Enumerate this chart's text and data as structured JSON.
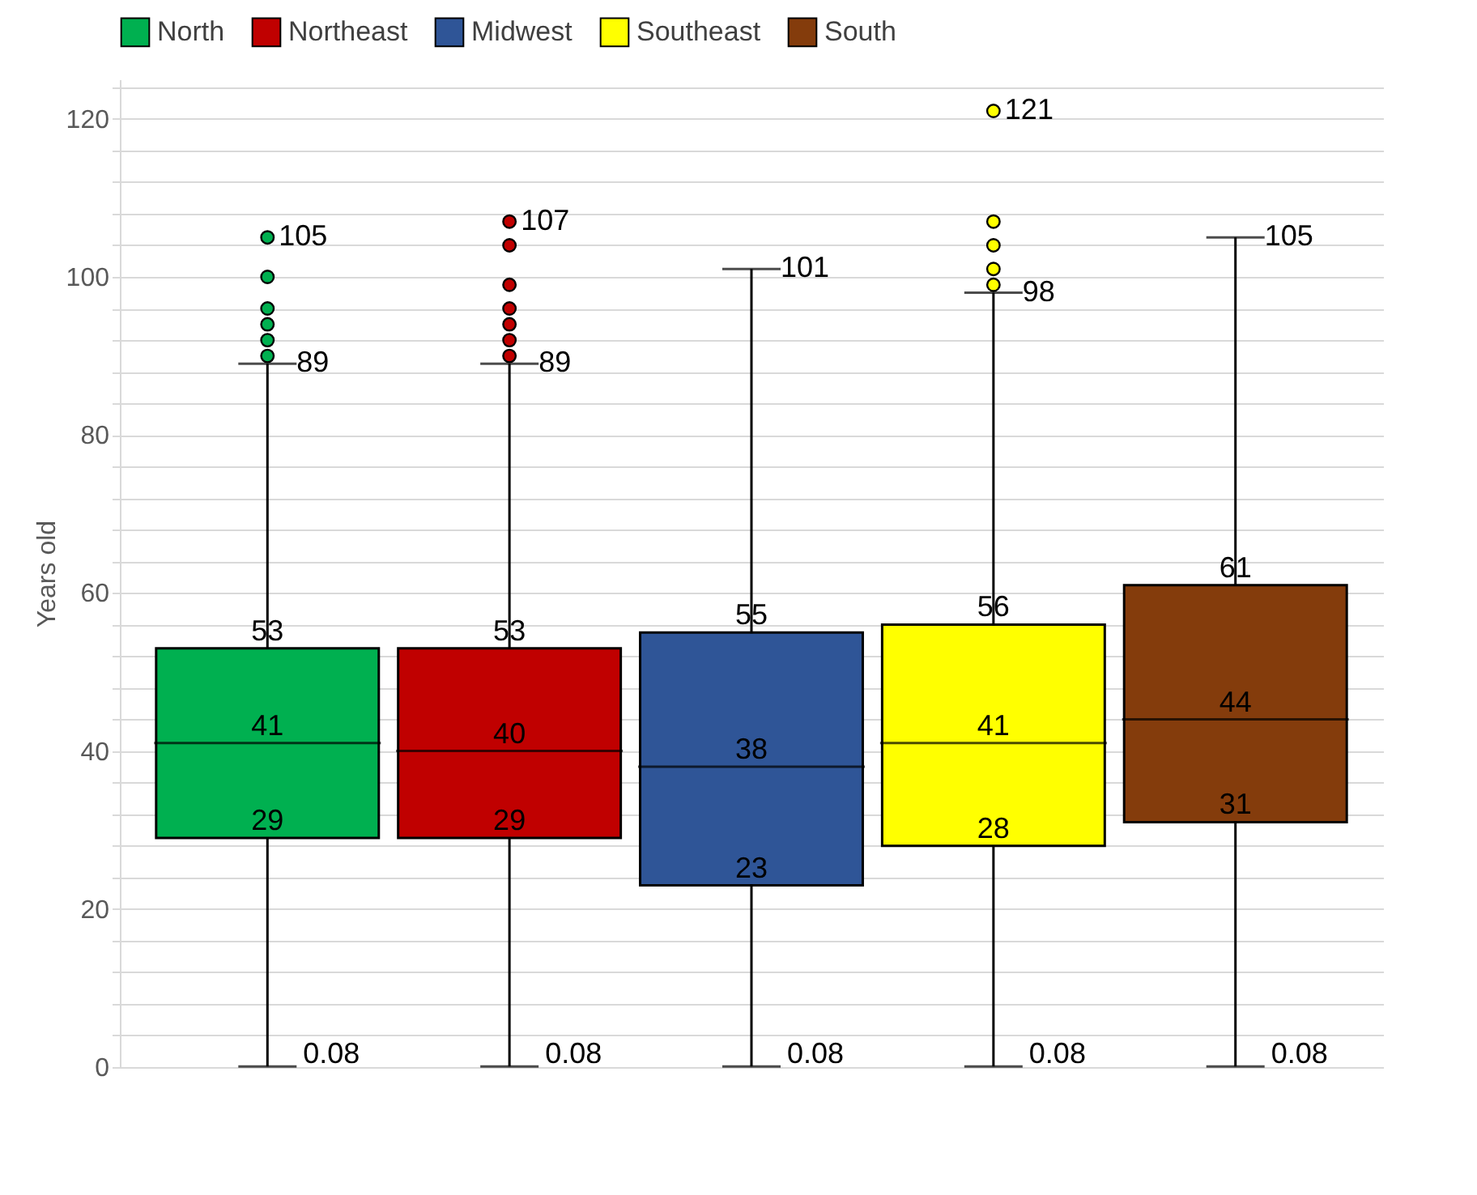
{
  "chart_data": {
    "type": "box",
    "ylabel": "Years old",
    "categories": [
      null
    ],
    "series": [
      {
        "name": "North",
        "color": "#00b050",
        "boxes": [
          {
            "low": 0.08,
            "q1": 29,
            "median": 41,
            "q3": 53,
            "high": 89,
            "outliers": [
              90,
              92,
              94,
              96,
              100,
              105
            ]
          }
        ]
      },
      {
        "name": "Northeast",
        "color": "#c00000",
        "boxes": [
          {
            "low": 0.08,
            "q1": 29,
            "median": 40,
            "q3": 53,
            "high": 89,
            "outliers": [
              90,
              92,
              94,
              96,
              99,
              104,
              107
            ]
          }
        ]
      },
      {
        "name": "Midwest",
        "color": "#2f5597",
        "boxes": [
          {
            "low": 0.08,
            "q1": 23,
            "median": 38,
            "q3": 55,
            "high": 101
          }
        ]
      },
      {
        "name": "Southeast",
        "color": "#ffff00",
        "boxes": [
          {
            "low": 0.08,
            "q1": 28,
            "median": 41,
            "q3": 56,
            "high": 98,
            "outliers": [
              99,
              101,
              104,
              107,
              121
            ]
          }
        ]
      },
      {
        "name": "South",
        "color": "#843c0c",
        "boxes": [
          {
            "low": 0.08,
            "q1": 31,
            "median": 44,
            "q3": 61,
            "high": 105
          }
        ]
      }
    ],
    "annotations": [
      "0.08",
      {
        "text": "29",
        "y": 29
      },
      {
        "text": "41",
        "y": 41
      },
      {
        "text": "53",
        "y": 53
      },
      "89",
      "105",
      "0.08",
      {
        "text": "29",
        "y": 29
      },
      {
        "text": "40",
        "y": 40
      },
      {
        "text": "53",
        "y": 53
      },
      "89",
      "107",
      "0.08",
      {
        "text": "23",
        "y": 23
      },
      {
        "text": "38",
        "y": 38
      },
      {
        "text": "55",
        "y": 55
      },
      "101",
      "0.08",
      {
        "text": "28",
        "y": 28
      },
      {
        "text": "41",
        "y": 41
      },
      {
        "text": "56",
        "y": 56
      },
      "98",
      "121",
      "0.08",
      {
        "text": "31",
        "y": 31
      },
      {
        "text": "44",
        "y": 44
      },
      {
        "text": "61",
        "y": 61
      },
      "105"
    ],
    "ylim": [
      0,
      125
    ],
    "yticks": [
      0,
      {
        "value": 4,
        "label": null
      },
      {
        "value": 8,
        "label": null
      },
      {
        "value": 12,
        "label": null
      },
      {
        "value": 16,
        "label": null
      },
      20,
      {
        "value": 24,
        "label": null
      },
      {
        "value": 28,
        "label": null
      },
      {
        "value": 32,
        "label": null
      },
      {
        "value": 36,
        "label": null
      },
      40,
      {
        "value": 44,
        "label": null
      },
      {
        "value": 48,
        "label": null
      },
      {
        "value": 52,
        "label": null
      },
      {
        "value": 56,
        "label": null
      },
      60,
      {
        "value": 64,
        "label": null
      },
      {
        "value": 68,
        "label": null
      },
      {
        "value": 72,
        "label": null
      },
      {
        "value": 76,
        "label": null
      },
      80,
      {
        "value": 84,
        "label": null
      },
      {
        "value": 88,
        "label": null
      },
      {
        "value": 92,
        "label": null
      },
      {
        "value": 96,
        "label": null
      },
      100,
      {
        "value": 104,
        "label": null
      },
      {
        "value": 108,
        "label": null
      },
      {
        "value": 112,
        "label": null
      },
      {
        "value": 116,
        "label": null
      },
      120,
      {
        "value": 124,
        "label": null
      }
    ],
    "grid": "y",
    "legend": "top",
    "tick_labels": "y"
  }
}
